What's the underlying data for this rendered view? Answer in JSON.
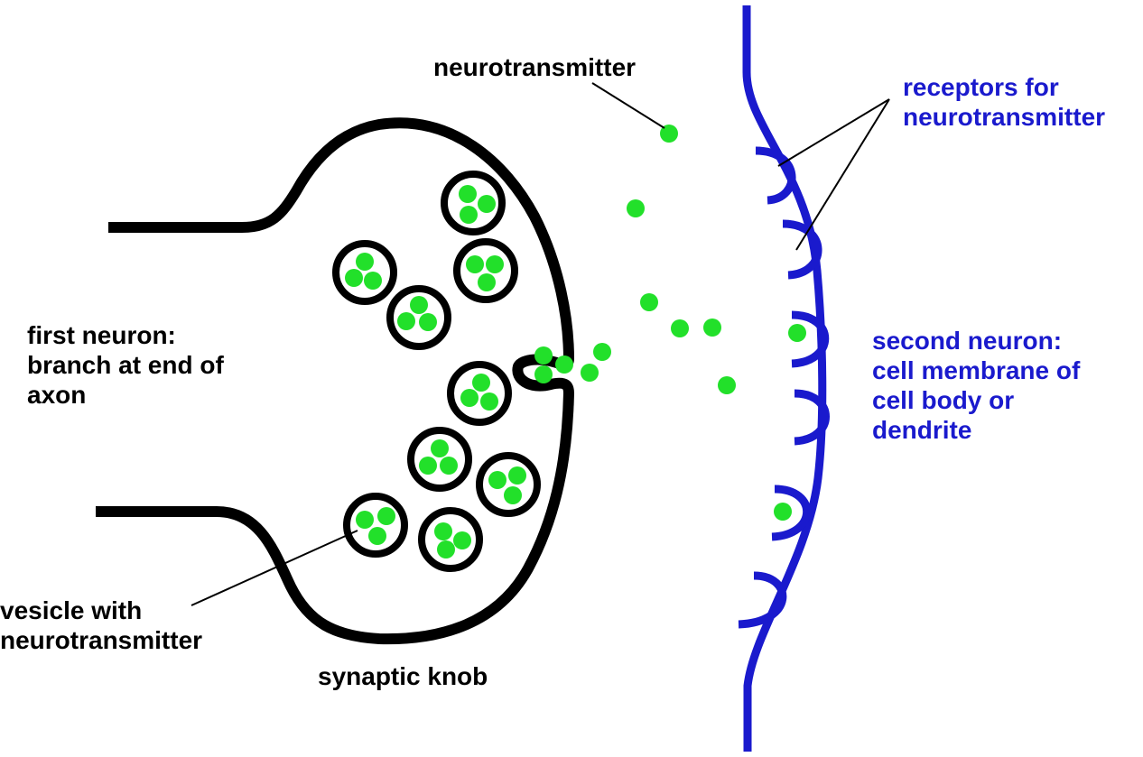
{
  "labels": {
    "neurotransmitter": "neurotransmitter",
    "receptors": [
      "receptors for",
      "neurotransmitter"
    ],
    "first_neuron": [
      "first neuron:",
      "branch at end of",
      "axon"
    ],
    "second_neuron": [
      "second neuron:",
      "cell membrane of",
      "cell body or",
      "dendrite"
    ],
    "vesicle": [
      "vesicle with",
      "neurotransmitter"
    ],
    "synaptic_knob": "synaptic knob"
  },
  "colors": {
    "first_neuron_outline": "#000000",
    "second_neuron_membrane": "#1a1acd",
    "neurotransmitter": "#22e02a",
    "label_blue": "#1a1acd",
    "label_black": "#000000"
  }
}
